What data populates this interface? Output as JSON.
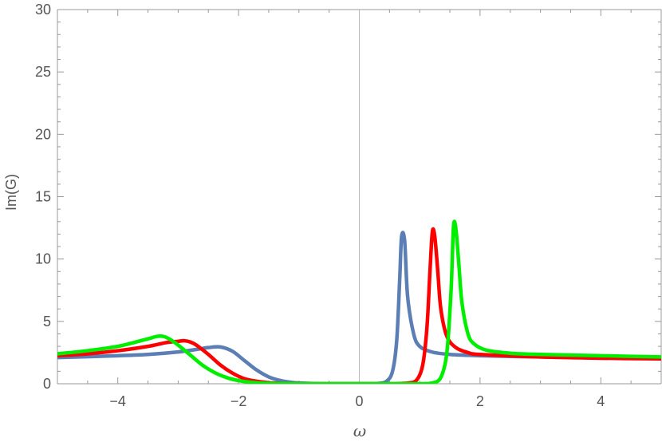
{
  "chart_data": {
    "type": "line",
    "xlabel": "ω",
    "ylabel": "Im(G)",
    "xlim": [
      -5,
      5
    ],
    "ylim": [
      0,
      30
    ],
    "x_ticks": [
      -4,
      -2,
      0,
      2,
      4
    ],
    "x_tick_labels": [
      "−4",
      "−2",
      "0",
      "2",
      "4"
    ],
    "y_ticks": [
      0,
      5,
      10,
      15,
      20,
      25,
      30
    ],
    "y_tick_labels": [
      "0",
      "5",
      "10",
      "15",
      "20",
      "25",
      "30"
    ],
    "grid": false,
    "series": [
      {
        "color": "#5b7fb5",
        "x": [
          -5,
          -4,
          -3.5,
          -3,
          -2.7,
          -2.5,
          -2.3,
          -2.1,
          -1.9,
          -1.7,
          -1.5,
          -1.3,
          -1.1,
          -0.9,
          -0.7,
          -0.5,
          0,
          0.3,
          0.45,
          0.55,
          0.62,
          0.67,
          0.7,
          0.75,
          0.8,
          0.9,
          1.0,
          1.2,
          1.5,
          2,
          3,
          4,
          5
        ],
        "values": [
          2.1,
          2.25,
          2.35,
          2.55,
          2.75,
          2.9,
          2.95,
          2.6,
          1.85,
          1.1,
          0.55,
          0.25,
          0.1,
          0.04,
          0.01,
          0,
          0,
          0.02,
          0.2,
          1.0,
          3.5,
          8.5,
          11.8,
          11.5,
          7.0,
          4.0,
          3.0,
          2.55,
          2.35,
          2.25,
          2.15,
          2.1,
          2.05
        ]
      },
      {
        "color": "#ff0000",
        "x": [
          -5,
          -4.5,
          -4,
          -3.5,
          -3.2,
          -3.0,
          -2.9,
          -2.8,
          -2.7,
          -2.5,
          -2.3,
          -2.1,
          -1.9,
          -1.7,
          -1.5,
          -1.3,
          -1.1,
          -0.9,
          -0.5,
          0,
          0.5,
          0.8,
          0.95,
          1.05,
          1.12,
          1.17,
          1.21,
          1.25,
          1.3,
          1.35,
          1.45,
          1.6,
          1.8,
          2.0,
          3.0,
          4.0,
          5.0
        ],
        "values": [
          2.25,
          2.4,
          2.65,
          3.0,
          3.3,
          3.4,
          3.45,
          3.35,
          3.1,
          2.35,
          1.5,
          0.85,
          0.4,
          0.2,
          0.08,
          0.03,
          0.01,
          0,
          0,
          0,
          0,
          0.05,
          0.3,
          1.5,
          4.5,
          9.0,
          12.2,
          11.8,
          9.0,
          6.0,
          3.8,
          2.9,
          2.5,
          2.35,
          2.15,
          2.05,
          2.0
        ]
      },
      {
        "color": "#00ee00",
        "x": [
          -5,
          -4.5,
          -4,
          -3.7,
          -3.5,
          -3.35,
          -3.25,
          -3.15,
          -3.0,
          -2.8,
          -2.6,
          -2.4,
          -2.2,
          -2.0,
          -1.8,
          -1.6,
          -1.4,
          -1.2,
          -1.0,
          -0.5,
          0,
          0.5,
          1.0,
          1.2,
          1.35,
          1.45,
          1.52,
          1.56,
          1.6,
          1.65,
          1.7,
          1.8,
          1.9,
          2.1,
          2.5,
          3.0,
          4.0,
          5.0
        ],
        "values": [
          2.4,
          2.65,
          3.0,
          3.35,
          3.6,
          3.8,
          3.8,
          3.6,
          3.1,
          2.3,
          1.5,
          0.9,
          0.5,
          0.25,
          0.12,
          0.05,
          0.02,
          0.01,
          0,
          0,
          0,
          0,
          0,
          0.05,
          0.5,
          2.5,
          7.5,
          12.6,
          12.4,
          9.5,
          6.5,
          4.0,
          3.2,
          2.7,
          2.45,
          2.35,
          2.25,
          2.15
        ]
      }
    ]
  }
}
